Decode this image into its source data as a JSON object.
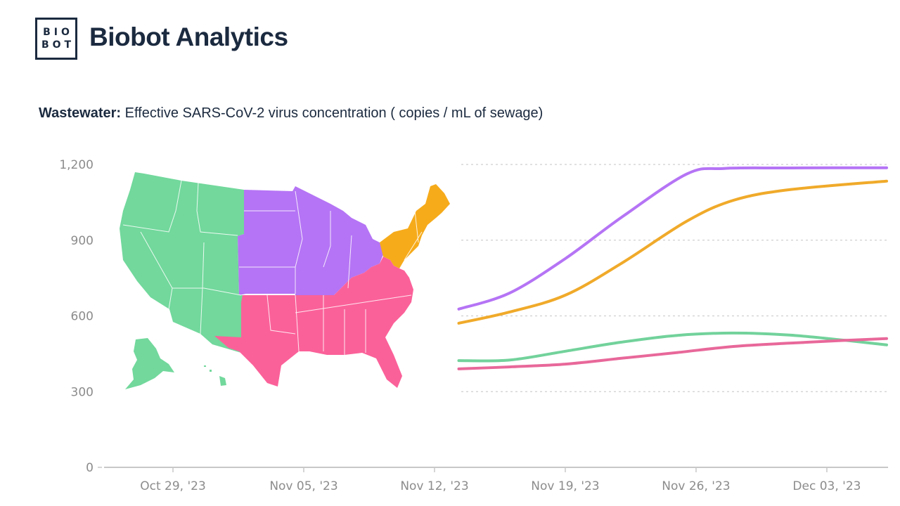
{
  "header": {
    "logo_line1": "BIO",
    "logo_line2": "BOT",
    "brand_name": "Biobot Analytics"
  },
  "chart_title": {
    "bold": "Wastewater:",
    "rest": " Effective SARS-CoV-2 virus concentration ( copies / mL of sewage)"
  },
  "map": {
    "description": "US map colored by region",
    "regions": [
      {
        "name": "West",
        "color": "#72d89c"
      },
      {
        "name": "Midwest",
        "color": "#b574f5"
      },
      {
        "name": "South",
        "color": "#fb6199"
      },
      {
        "name": "Northeast",
        "color": "#f6ab1b"
      }
    ]
  },
  "chart_data": {
    "type": "line",
    "title": "Wastewater: Effective SARS-CoV-2 virus concentration (copies / mL of sewage)",
    "xlabel": "",
    "ylabel": "copies / mL of sewage",
    "ylim": [
      0,
      1200
    ],
    "yticks": [
      {
        "value": 0,
        "label": "0"
      },
      {
        "value": 300,
        "label": "300"
      },
      {
        "value": 600,
        "label": "600"
      },
      {
        "value": 900,
        "label": "900"
      },
      {
        "value": 1200,
        "label": "1,200"
      }
    ],
    "xlim_days": [
      -3,
      39
    ],
    "xticks": [
      {
        "day": 0,
        "label": "Oct 29, '23"
      },
      {
        "day": 7,
        "label": "Nov 05, '23"
      },
      {
        "day": 14,
        "label": "Nov 12, '23"
      },
      {
        "day": 21,
        "label": "Nov 19, '23"
      },
      {
        "day": 28,
        "label": "Nov 26, '23"
      },
      {
        "day": 35,
        "label": "Dec 03, '23"
      }
    ],
    "grid": true,
    "x_day_origin": "Oct 29, '23",
    "series": [
      {
        "name": "Midwest",
        "color": "#b574f5",
        "x": [
          15.3,
          18,
          21,
          24,
          27.5,
          29.5,
          33,
          38.2
        ],
        "y": [
          627,
          690,
          827,
          990,
          1162,
          1184,
          1186,
          1187
        ]
      },
      {
        "name": "Northeast",
        "color": "#f0aa2a",
        "x": [
          15.3,
          18,
          21,
          24,
          27.5,
          30,
          33,
          38.2
        ],
        "y": [
          571,
          615,
          682,
          808,
          975,
          1058,
          1100,
          1134
        ]
      },
      {
        "name": "West",
        "color": "#72d29b",
        "x": [
          15.3,
          18,
          21,
          24,
          27,
          30,
          33,
          36,
          38.2
        ],
        "y": [
          423,
          425,
          460,
          496,
          523,
          532,
          524,
          503,
          485
        ]
      },
      {
        "name": "South",
        "color": "#e8689a",
        "x": [
          15.3,
          18,
          21,
          24,
          27,
          30,
          33,
          36,
          38.2
        ],
        "y": [
          390,
          398,
          409,
          432,
          455,
          479,
          492,
          503,
          510
        ]
      }
    ]
  }
}
